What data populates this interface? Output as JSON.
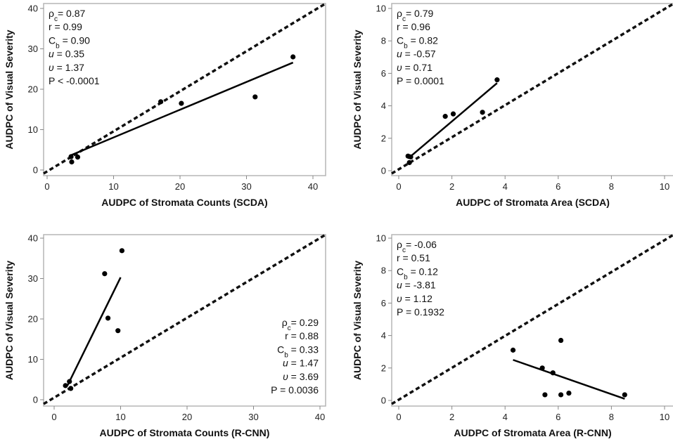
{
  "chart_data": [
    {
      "type": "scatter",
      "xlabel": "AUDPC of Stromata Counts (SCDA)",
      "ylabel": "AUDPC of Visual Severity",
      "xlim": [
        0,
        40
      ],
      "ylim": [
        0,
        40
      ],
      "xticks": [
        "0",
        "10",
        "20",
        "30",
        "40"
      ],
      "yticks": [
        "0",
        "10",
        "20",
        "30",
        "40"
      ],
      "points": [
        {
          "x": 3.6,
          "y": 3.3
        },
        {
          "x": 3.7,
          "y": 2.0
        },
        {
          "x": 4.6,
          "y": 3.2
        },
        {
          "x": 17.1,
          "y": 16.9
        },
        {
          "x": 20.2,
          "y": 16.5
        },
        {
          "x": 31.3,
          "y": 18.1
        },
        {
          "x": 37.0,
          "y": 28.0
        }
      ],
      "fit_line": {
        "x1": 3.5,
        "y1": 3.6,
        "x2": 37.0,
        "y2": 26.6
      },
      "identity_line": true,
      "stats": {
        "rho_c": "0.87",
        "r": "0.99",
        "c_b": "0.90",
        "u": "0.35",
        "v": "1.37",
        "p": "P < -0.0001"
      },
      "stats_position": "top-left"
    },
    {
      "type": "scatter",
      "xlabel": "AUDPC of Stromata Area (SCDA)",
      "ylabel": "AUDPC of Visual Severity",
      "xlim": [
        0,
        10
      ],
      "ylim": [
        0,
        10
      ],
      "xticks": [
        "0",
        "2",
        "4",
        "6",
        "8",
        "10"
      ],
      "yticks": [
        "0",
        "2",
        "4",
        "6",
        "8",
        "10"
      ],
      "points": [
        {
          "x": 0.35,
          "y": 0.9
        },
        {
          "x": 0.4,
          "y": 0.5
        },
        {
          "x": 0.45,
          "y": 0.85
        },
        {
          "x": 1.75,
          "y": 3.35
        },
        {
          "x": 2.05,
          "y": 3.5
        },
        {
          "x": 3.15,
          "y": 3.6
        },
        {
          "x": 3.7,
          "y": 5.6
        }
      ],
      "fit_line": {
        "x1": 0.35,
        "y1": 0.75,
        "x2": 3.7,
        "y2": 5.4
      },
      "identity_line": true,
      "stats": {
        "rho_c": "0.79",
        "r": "0.96",
        "c_b": "0.82",
        "u": "-0.57",
        "v": "0.71",
        "p": "P = 0.0001"
      },
      "stats_position": "top-left"
    },
    {
      "type": "scatter",
      "xlabel": "AUDPC of Stromata Counts (R-CNN)",
      "ylabel": "AUDPC of Visual Severity",
      "xlim": [
        0,
        40
      ],
      "ylim": [
        0,
        40
      ],
      "xticks": [
        "0",
        "10",
        "20",
        "30",
        "40"
      ],
      "yticks": [
        "0",
        "10",
        "20",
        "30",
        "40"
      ],
      "points": [
        {
          "x": 1.7,
          "y": 3.5
        },
        {
          "x": 2.3,
          "y": 4.5
        },
        {
          "x": 2.5,
          "y": 2.8
        },
        {
          "x": 7.6,
          "y": 31.2
        },
        {
          "x": 8.1,
          "y": 20.2
        },
        {
          "x": 9.6,
          "y": 17.1
        },
        {
          "x": 10.2,
          "y": 36.9
        }
      ],
      "fit_line": {
        "x1": 2.0,
        "y1": 3.5,
        "x2": 10.0,
        "y2": 30.3
      },
      "identity_line": true,
      "stats": {
        "rho_c": "0.29",
        "r": "0.88",
        "c_b": "0.33",
        "u": "1.47",
        "v": "3.69",
        "p": "P = 0.0036"
      },
      "stats_position": "bottom-right"
    },
    {
      "type": "scatter",
      "xlabel": "AUDPC of Stromata Area (R-CNN)",
      "ylabel": "AUDPC of Visual Severity",
      "xlim": [
        0,
        10
      ],
      "ylim": [
        0,
        10
      ],
      "xticks": [
        "0",
        "2",
        "4",
        "6",
        "8",
        "10"
      ],
      "yticks": [
        "0",
        "2",
        "4",
        "6",
        "8",
        "10"
      ],
      "points": [
        {
          "x": 4.3,
          "y": 3.1
        },
        {
          "x": 5.4,
          "y": 2.0
        },
        {
          "x": 5.5,
          "y": 0.35
        },
        {
          "x": 5.8,
          "y": 1.7
        },
        {
          "x": 6.1,
          "y": 3.7
        },
        {
          "x": 6.1,
          "y": 0.35
        },
        {
          "x": 6.4,
          "y": 0.45
        },
        {
          "x": 8.5,
          "y": 0.35
        }
      ],
      "fit_line": {
        "x1": 4.3,
        "y1": 2.5,
        "x2": 8.5,
        "y2": 0.1
      },
      "identity_line": true,
      "stats": {
        "rho_c": "-0.06",
        "r": "0.51",
        "c_b": "0.12",
        "u": "-3.81",
        "v": "1.12",
        "p": "P = 0.1932"
      },
      "stats_position": "top-left"
    }
  ],
  "stat_labels": {
    "rho": "ρ",
    "rho_sub": "c",
    "r": "r",
    "cb": "C",
    "cb_sub": "b",
    "u": "u",
    "v": "υ"
  }
}
